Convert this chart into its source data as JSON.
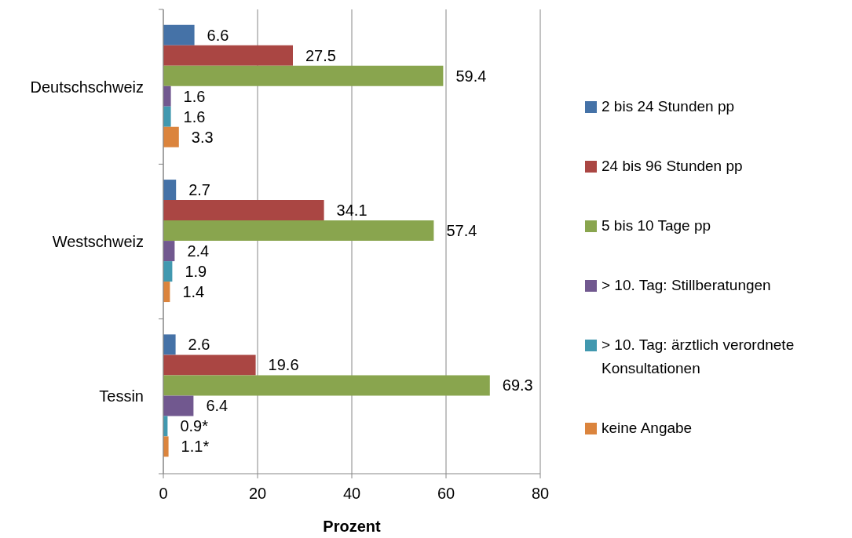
{
  "chart_data": {
    "type": "bar",
    "orientation": "horizontal",
    "categories": [
      "Deutschschweiz",
      "Westschweiz",
      "Tessin"
    ],
    "series": [
      {
        "name": "2 bis 24 Stunden pp",
        "color": "#4572a7",
        "values": [
          6.6,
          2.7,
          2.6
        ],
        "value_labels": [
          "6.6",
          "2.7",
          "2.6"
        ]
      },
      {
        "name": "24 bis 96 Stunden pp",
        "color": "#aa4643",
        "values": [
          27.5,
          34.1,
          19.6
        ],
        "value_labels": [
          "27.5",
          "34.1",
          "19.6"
        ]
      },
      {
        "name": "5 bis 10 Tage pp",
        "color": "#89a54e",
        "values": [
          59.4,
          57.4,
          69.3
        ],
        "value_labels": [
          "59.4",
          "57.4",
          "69.3"
        ]
      },
      {
        "name": "> 10. Tag: Stillberatungen",
        "color": "#71588f",
        "values": [
          1.6,
          2.4,
          6.4
        ],
        "value_labels": [
          "1.6",
          "2.4",
          "6.4"
        ]
      },
      {
        "name": "> 10. Tag: ärztlich verordnete Konsultationen",
        "color": "#4198af",
        "values": [
          1.6,
          1.9,
          0.9
        ],
        "value_labels": [
          "1.6",
          "1.9",
          "0.9*"
        ]
      },
      {
        "name": "keine Angabe",
        "color": "#db843d",
        "values": [
          3.3,
          1.4,
          1.1
        ],
        "value_labels": [
          "3.3",
          "1.4",
          "1.1*"
        ]
      }
    ],
    "xlabel": "Prozent",
    "xlim": [
      0,
      80
    ],
    "xticks": [
      0,
      20,
      40,
      60,
      80
    ],
    "grid": "x",
    "legend": "right"
  }
}
